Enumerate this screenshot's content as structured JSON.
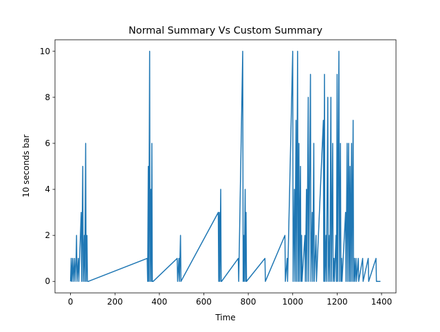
{
  "chart_data": {
    "type": "line",
    "title": "Normal Summary Vs Custom Summary",
    "x_label": "Time",
    "y_label": "10 seconds bar",
    "x": [
      0,
      3,
      5,
      10,
      12,
      18,
      20,
      25,
      27,
      29,
      35,
      37,
      48,
      50,
      55,
      57,
      62,
      64,
      68,
      70,
      74,
      76,
      80,
      345,
      347,
      350,
      352,
      356,
      358,
      362,
      364,
      366,
      368,
      372,
      480,
      482,
      488,
      490,
      495,
      497,
      665,
      667,
      670,
      672,
      676,
      678,
      680,
      755,
      757,
      775,
      777,
      780,
      782,
      786,
      788,
      790,
      792,
      875,
      877,
      965,
      967,
      975,
      977,
      1000,
      1002,
      1008,
      1010,
      1015,
      1017,
      1022,
      1024,
      1028,
      1030,
      1035,
      1037,
      1040,
      1042,
      1055,
      1057,
      1062,
      1064,
      1070,
      1072,
      1080,
      1082,
      1088,
      1090,
      1095,
      1097,
      1105,
      1107,
      1138,
      1140,
      1143,
      1145,
      1150,
      1152,
      1158,
      1160,
      1165,
      1167,
      1172,
      1174,
      1180,
      1182,
      1186,
      1188,
      1195,
      1197,
      1200,
      1202,
      1208,
      1210,
      1215,
      1217,
      1220,
      1222,
      1238,
      1240,
      1245,
      1247,
      1252,
      1254,
      1258,
      1260,
      1265,
      1267,
      1272,
      1274,
      1278,
      1280,
      1285,
      1287,
      1295,
      1297,
      1315,
      1317,
      1340,
      1342,
      1375,
      1377,
      1395
    ],
    "values": [
      0,
      1,
      0,
      1,
      0,
      1,
      0,
      1,
      2,
      0,
      1,
      0,
      3,
      0,
      5,
      0,
      2,
      0,
      6,
      0,
      2,
      0,
      0,
      1,
      0,
      5,
      0,
      10,
      0,
      4,
      0,
      6,
      0,
      0,
      1,
      0,
      1,
      0,
      2,
      0,
      3,
      0,
      3,
      0,
      4,
      0,
      0,
      1,
      0,
      10,
      0,
      2,
      0,
      4,
      0,
      3,
      0,
      1,
      0,
      2,
      0,
      1,
      0,
      10,
      0,
      4,
      0,
      7,
      0,
      10,
      0,
      6,
      0,
      5,
      0,
      2,
      0,
      2,
      0,
      4,
      0,
      8,
      0,
      9,
      0,
      3,
      0,
      6,
      0,
      2,
      0,
      7,
      0,
      9,
      0,
      2,
      0,
      8,
      0,
      2,
      0,
      8,
      0,
      6,
      0,
      1,
      0,
      2,
      0,
      9,
      0,
      10,
      0,
      6,
      0,
      1,
      0,
      3,
      0,
      6,
      0,
      6,
      0,
      5,
      0,
      6,
      0,
      7,
      0,
      1,
      0,
      1,
      0,
      1,
      0,
      1,
      0,
      1,
      0,
      1,
      0,
      0
    ],
    "color": "#1f77b4",
    "xlim": [
      -70,
      1465
    ],
    "xticks": [
      0,
      200,
      400,
      600,
      800,
      1000,
      1200,
      1400
    ],
    "ylim": [
      -0.5,
      10.5
    ],
    "yticks": [
      0,
      2,
      4,
      6,
      8,
      10
    ],
    "grid": false
  }
}
